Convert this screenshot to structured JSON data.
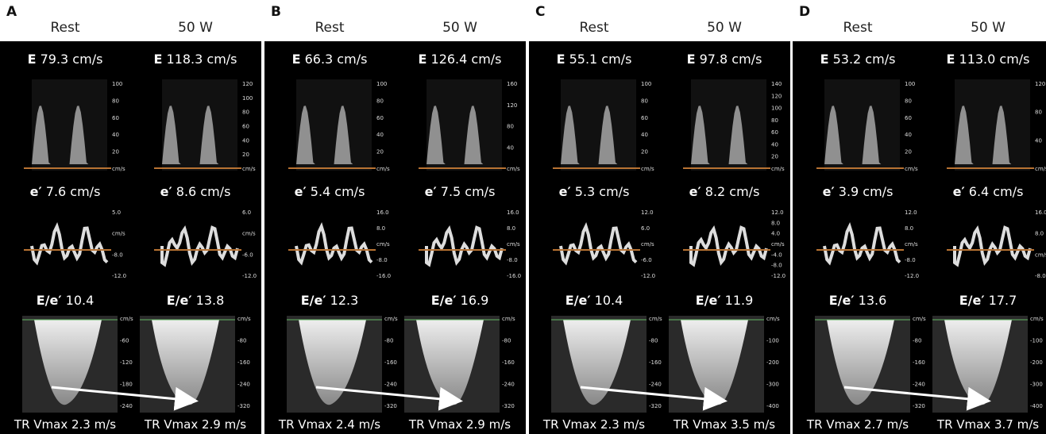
{
  "panels": [
    {
      "letter": "A",
      "columns": [
        {
          "heading": "Rest",
          "E": {
            "label": "E",
            "value": "79.3 cm/s",
            "ticks": [
              "100",
              "80",
              "60",
              "40",
              "20",
              "cm/s"
            ]
          },
          "e_prime": {
            "label": "e′",
            "value": "7.6 cm/s",
            "ticks": [
              "5.0",
              "cm/s",
              "-8.0",
              "-12.0"
            ]
          },
          "ratio": {
            "label": "E/e′",
            "value": "10.4"
          },
          "tr_ticks": [
            "cm/s",
            "-60",
            "-120",
            "-180",
            "-240"
          ],
          "tr": "TR Vmax 2.3 m/s"
        },
        {
          "heading": "50 W",
          "E": {
            "label": "E",
            "value": "118.3 cm/s",
            "ticks": [
              "120",
              "100",
              "80",
              "60",
              "40",
              "20",
              "cm/s"
            ]
          },
          "e_prime": {
            "label": "e′",
            "value": "8.6 cm/s",
            "ticks": [
              "6.0",
              "cm/s",
              "-6.0",
              "-12.0"
            ]
          },
          "ratio": {
            "label": "E/e′",
            "value": "13.8"
          },
          "tr_ticks": [
            "cm/s",
            "-80",
            "-160",
            "-240",
            "-320"
          ],
          "tr": "TR Vmax 2.9 m/s"
        }
      ]
    },
    {
      "letter": "B",
      "columns": [
        {
          "heading": "Rest",
          "E": {
            "label": "E",
            "value": "66.3 cm/s",
            "ticks": [
              "100",
              "80",
              "60",
              "40",
              "20",
              "cm/s"
            ]
          },
          "e_prime": {
            "label": "e′",
            "value": "5.4 cm/s",
            "ticks": [
              "16.0",
              "8.0",
              "cm/s",
              "-8.0",
              "-16.0"
            ]
          },
          "ratio": {
            "label": "E/e′",
            "value": "12.3"
          },
          "tr_ticks": [
            "cm/s",
            "-80",
            "-160",
            "-240",
            "-320"
          ],
          "tr": "TR Vmax 2.4 m/s"
        },
        {
          "heading": "50 W",
          "E": {
            "label": "E",
            "value": "126.4 cm/s",
            "ticks": [
              "160",
              "120",
              "80",
              "40",
              "cm/s"
            ]
          },
          "e_prime": {
            "label": "e′",
            "value": "7.5 cm/s",
            "ticks": [
              "16.0",
              "8.0",
              "cm/s",
              "-8.0",
              "-16.0"
            ]
          },
          "ratio": {
            "label": "E/e′",
            "value": "16.9"
          },
          "tr_ticks": [
            "cm/s",
            "-80",
            "-160",
            "-240",
            "-320"
          ],
          "tr": "TR Vmax 2.9 m/s"
        }
      ]
    },
    {
      "letter": "C",
      "columns": [
        {
          "heading": "Rest",
          "E": {
            "label": "E",
            "value": "55.1 cm/s",
            "ticks": [
              "100",
              "80",
              "60",
              "40",
              "20",
              "cm/s"
            ]
          },
          "e_prime": {
            "label": "e′",
            "value": "5.3 cm/s",
            "ticks": [
              "12.0",
              "6.0",
              "cm/s",
              "-6.0",
              "-12.0"
            ]
          },
          "ratio": {
            "label": "E/e′",
            "value": "10.4"
          },
          "tr_ticks": [
            "cm/s",
            "-80",
            "-160",
            "-240",
            "-320"
          ],
          "tr": "TR Vmax 2.3 m/s"
        },
        {
          "heading": "50 W",
          "E": {
            "label": "E",
            "value": "97.8 cm/s",
            "ticks": [
              "140",
              "120",
              "100",
              "80",
              "60",
              "40",
              "20",
              "cm/s"
            ]
          },
          "e_prime": {
            "label": "e′",
            "value": "8.2 cm/s",
            "ticks": [
              "12.0",
              "8.0",
              "4.0",
              "cm/s",
              "-4.0",
              "-8.0",
              "-12.0"
            ]
          },
          "ratio": {
            "label": "E/e′",
            "value": "11.9"
          },
          "tr_ticks": [
            "cm/s",
            "-100",
            "-200",
            "-300",
            "-400"
          ],
          "tr": "TR Vmax 3.5 m/s"
        }
      ]
    },
    {
      "letter": "D",
      "columns": [
        {
          "heading": "Rest",
          "E": {
            "label": "E",
            "value": "53.2 cm/s",
            "ticks": [
              "100",
              "80",
              "60",
              "40",
              "20",
              "cm/s"
            ]
          },
          "e_prime": {
            "label": "e′",
            "value": "3.9 cm/s",
            "ticks": [
              "12.0",
              "8.0",
              "cm/s",
              "-8.0",
              "-12.0"
            ]
          },
          "ratio": {
            "label": "E/e′",
            "value": "13.6"
          },
          "tr_ticks": [
            "cm/s",
            "-80",
            "-160",
            "-240",
            "-320"
          ],
          "tr": "TR Vmax 2.7 m/s"
        },
        {
          "heading": "50 W",
          "E": {
            "label": "E",
            "value": "113.0 cm/s",
            "ticks": [
              "120",
              "80",
              "40",
              "cm/s"
            ]
          },
          "e_prime": {
            "label": "e′",
            "value": "6.4 cm/s",
            "ticks": [
              "16.0",
              "8.0",
              "cm/s",
              "-8.0"
            ]
          },
          "ratio": {
            "label": "E/e′",
            "value": "17.7"
          },
          "tr_ticks": [
            "cm/s",
            "-100",
            "-200",
            "-300",
            "-400"
          ],
          "tr": "TR Vmax 3.7 m/s"
        }
      ]
    }
  ]
}
